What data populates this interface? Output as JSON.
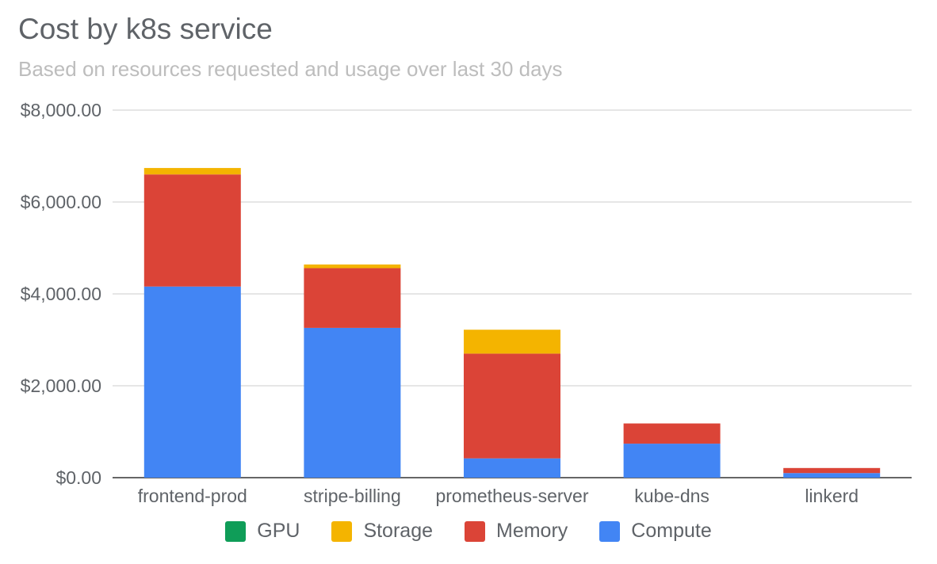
{
  "chart_data": {
    "type": "bar",
    "stacked": true,
    "title": "Cost by k8s service",
    "subtitle": "Based on resources requested and usage over last 30 days",
    "categories": [
      "frontend-prod",
      "stripe-billing",
      "prometheus-server",
      "kube-dns",
      "linkerd"
    ],
    "series": [
      {
        "name": "Compute",
        "color": "#4285f4",
        "values": [
          4160,
          3260,
          420,
          740,
          100
        ]
      },
      {
        "name": "Memory",
        "color": "#db4437",
        "values": [
          2440,
          1300,
          2280,
          440,
          110
        ]
      },
      {
        "name": "Storage",
        "color": "#f4b400",
        "values": [
          140,
          80,
          520,
          0,
          0
        ]
      },
      {
        "name": "GPU",
        "color": "#0f9d58",
        "values": [
          0,
          0,
          0,
          0,
          0
        ]
      }
    ],
    "legend_order": [
      "GPU",
      "Storage",
      "Memory",
      "Compute"
    ],
    "ylim": [
      0,
      8000
    ],
    "yticks": [
      0,
      2000,
      4000,
      6000,
      8000
    ],
    "ytick_labels": [
      "$0.00",
      "$2,000.00",
      "$4,000.00",
      "$6,000.00",
      "$8,000.00"
    ],
    "grid": true,
    "legend_position": "bottom"
  }
}
